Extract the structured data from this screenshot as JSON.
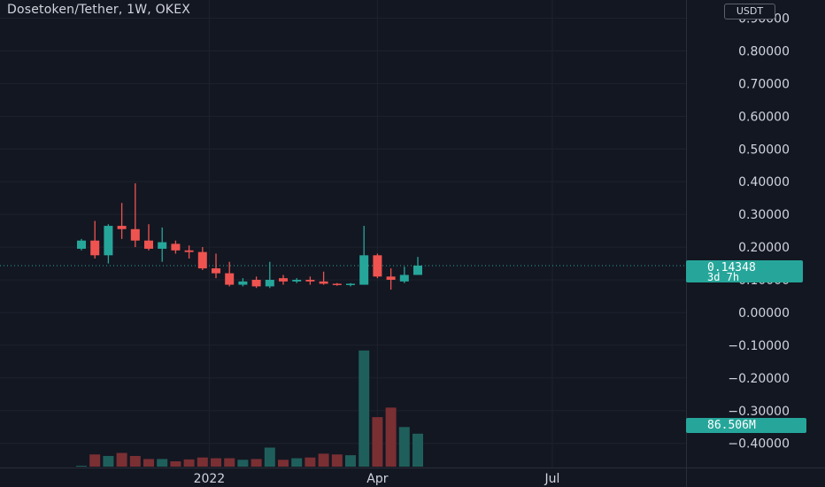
{
  "header": {
    "title": "Dosetoken/Tether, 1W, OKEX",
    "currency": "USDT"
  },
  "last_price": {
    "value": 0.14348,
    "label": "0.14348",
    "countdown": "3d 7h"
  },
  "last_volume": {
    "label": "86.506M"
  },
  "colors": {
    "background": "#131722",
    "up": "#26a69a",
    "down": "#ef5350",
    "grid": "#1e222d",
    "text": "#d1d4dc"
  },
  "chart_data": {
    "type": "candlestick",
    "title": "Dosetoken/Tether, 1W, OKEX",
    "interval": "1W",
    "exchange": "OKEX",
    "y_axis": {
      "min": -0.45,
      "max": 0.9,
      "ticks": [
        0.9,
        0.8,
        0.7,
        0.6,
        0.5,
        0.4,
        0.3,
        0.2,
        0.1,
        0.0,
        -0.1,
        -0.2,
        -0.3,
        -0.4
      ],
      "tick_labels": [
        "0.90000",
        "0.80000",
        "0.70000",
        "0.60000",
        "0.50000",
        "0.40000",
        "0.30000",
        "0.20000",
        "0.10000",
        "0.00000",
        "−0.10000",
        "−0.20000",
        "−0.30000",
        "−0.40000"
      ],
      "position": "right"
    },
    "x_axis": {
      "tick_labels": [
        {
          "label": "2022",
          "bar_index": 9.5
        },
        {
          "label": "Apr",
          "bar_index": 22
        },
        {
          "label": "Jul",
          "bar_index": 35
        }
      ],
      "total_slots": 45
    },
    "grid": true,
    "candles": [
      {
        "o": 0.195,
        "h": 0.225,
        "l": 0.19,
        "c": 0.22,
        "v": 2
      },
      {
        "o": 0.22,
        "h": 0.28,
        "l": 0.165,
        "c": 0.175,
        "v": 32
      },
      {
        "o": 0.175,
        "h": 0.27,
        "l": 0.15,
        "c": 0.265,
        "v": 28
      },
      {
        "o": 0.265,
        "h": 0.335,
        "l": 0.225,
        "c": 0.255,
        "v": 36
      },
      {
        "o": 0.255,
        "h": 0.395,
        "l": 0.2,
        "c": 0.22,
        "v": 28
      },
      {
        "o": 0.22,
        "h": 0.27,
        "l": 0.19,
        "c": 0.195,
        "v": 20
      },
      {
        "o": 0.195,
        "h": 0.26,
        "l": 0.155,
        "c": 0.215,
        "v": 20
      },
      {
        "o": 0.21,
        "h": 0.22,
        "l": 0.18,
        "c": 0.19,
        "v": 14
      },
      {
        "o": 0.19,
        "h": 0.205,
        "l": 0.165,
        "c": 0.185,
        "v": 19
      },
      {
        "o": 0.185,
        "h": 0.2,
        "l": 0.13,
        "c": 0.135,
        "v": 24
      },
      {
        "o": 0.135,
        "h": 0.18,
        "l": 0.105,
        "c": 0.12,
        "v": 22
      },
      {
        "o": 0.12,
        "h": 0.155,
        "l": 0.08,
        "c": 0.085,
        "v": 22
      },
      {
        "o": 0.085,
        "h": 0.105,
        "l": 0.08,
        "c": 0.095,
        "v": 18
      },
      {
        "o": 0.1,
        "h": 0.11,
        "l": 0.075,
        "c": 0.08,
        "v": 20
      },
      {
        "o": 0.08,
        "h": 0.155,
        "l": 0.075,
        "c": 0.1,
        "v": 50
      },
      {
        "o": 0.105,
        "h": 0.115,
        "l": 0.085,
        "c": 0.095,
        "v": 18
      },
      {
        "o": 0.095,
        "h": 0.105,
        "l": 0.09,
        "c": 0.1,
        "v": 22
      },
      {
        "o": 0.1,
        "h": 0.11,
        "l": 0.085,
        "c": 0.095,
        "v": 24
      },
      {
        "o": 0.095,
        "h": 0.125,
        "l": 0.085,
        "c": 0.088,
        "v": 34
      },
      {
        "o": 0.088,
        "h": 0.09,
        "l": 0.082,
        "c": 0.085,
        "v": 32
      },
      {
        "o": 0.085,
        "h": 0.09,
        "l": 0.08,
        "c": 0.088,
        "v": 30
      },
      {
        "o": 0.085,
        "h": 0.265,
        "l": 0.085,
        "c": 0.175,
        "v": 305
      },
      {
        "o": 0.175,
        "h": 0.18,
        "l": 0.105,
        "c": 0.11,
        "v": 130
      },
      {
        "o": 0.11,
        "h": 0.135,
        "l": 0.07,
        "c": 0.1,
        "v": 155
      },
      {
        "o": 0.095,
        "h": 0.14,
        "l": 0.09,
        "c": 0.115,
        "v": 104
      },
      {
        "o": 0.115,
        "h": 0.17,
        "l": 0.115,
        "c": 0.14348,
        "v": 86.506
      }
    ],
    "volume_unit": "M"
  }
}
